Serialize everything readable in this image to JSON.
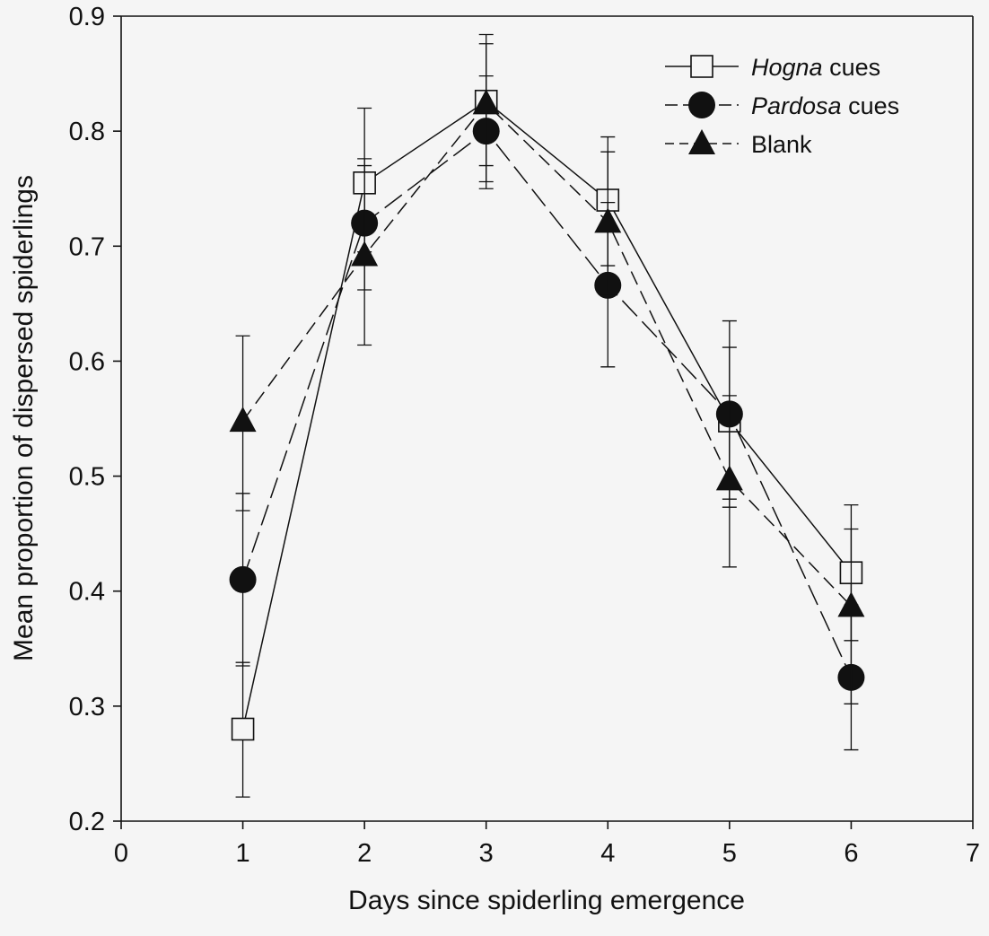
{
  "chart_data": {
    "type": "line",
    "title": "",
    "xlabel": "Days since spiderling emergence",
    "ylabel": "Mean proportion of dispersed spiderlings",
    "xlim": [
      0,
      7
    ],
    "ylim": [
      0.2,
      0.9
    ],
    "x_ticks": [
      "0",
      "1",
      "2",
      "3",
      "4",
      "5",
      "6",
      "7"
    ],
    "y_ticks": [
      "0.2",
      "0.3",
      "0.4",
      "0.5",
      "0.6",
      "0.7",
      "0.8",
      "0.9"
    ],
    "grid": false,
    "legend_position": "top-right",
    "x": [
      1,
      2,
      3,
      4,
      5,
      6
    ],
    "series": [
      {
        "name": "Hogna cues",
        "legend_italic": "Hogna",
        "legend_rest": " cues",
        "marker": "open-square",
        "line": "solid",
        "values": [
          0.28,
          0.755,
          0.826,
          0.74,
          0.548,
          0.416
        ],
        "err_low": [
          0.221,
          0.695,
          0.77,
          0.683,
          0.48,
          0.357
        ],
        "err_high": [
          0.338,
          0.82,
          0.884,
          0.795,
          0.612,
          0.475
        ]
      },
      {
        "name": "Pardosa cues",
        "legend_italic": "Pardosa",
        "legend_rest": " cues",
        "marker": "filled-circle",
        "line": "long-dash",
        "values": [
          0.41,
          0.72,
          0.8,
          0.666,
          0.554,
          0.325
        ],
        "err_low": [
          0.335,
          0.662,
          0.75,
          0.595,
          0.473,
          0.262
        ],
        "err_high": [
          0.485,
          0.776,
          0.848,
          0.738,
          0.635,
          0.388
        ]
      },
      {
        "name": "Blank",
        "legend_italic": "",
        "legend_rest": "Blank",
        "marker": "filled-triangle",
        "line": "dash",
        "values": [
          0.548,
          0.692,
          0.824,
          0.721,
          0.497,
          0.387
        ],
        "err_low": [
          0.47,
          0.614,
          0.756,
          0.658,
          0.421,
          0.302
        ],
        "err_high": [
          0.622,
          0.77,
          0.876,
          0.782,
          0.57,
          0.454
        ]
      }
    ]
  }
}
